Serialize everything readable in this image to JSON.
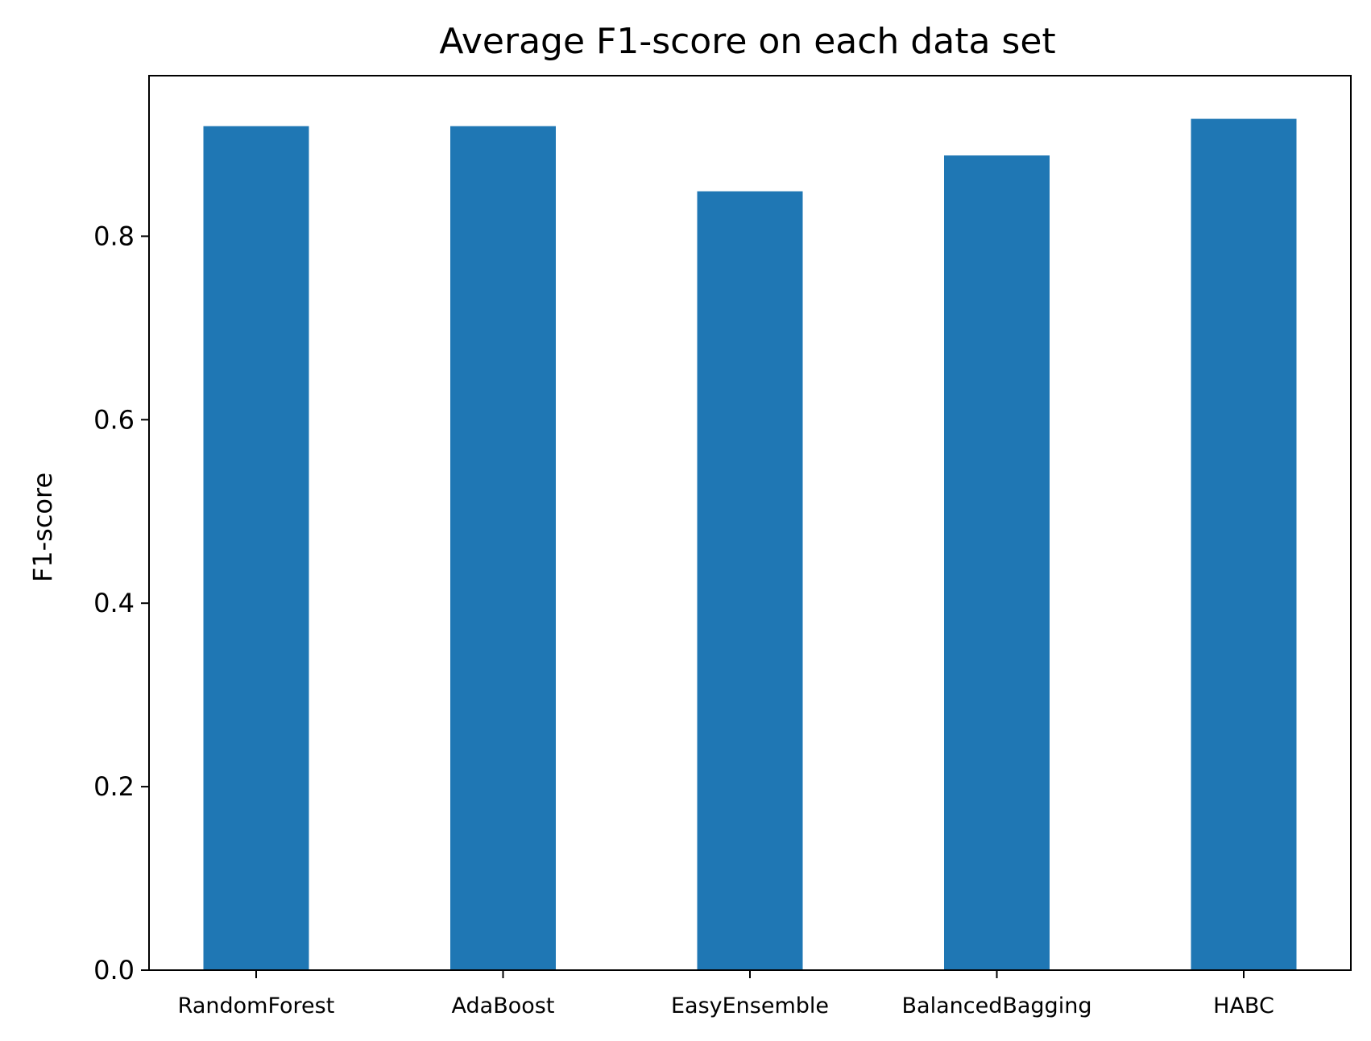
{
  "chart_data": {
    "type": "bar",
    "title": "Average F1-score on each data set",
    "xlabel": "",
    "ylabel": "F1-score",
    "categories": [
      "RandomForest",
      "AdaBoost",
      "EasyEnsemble",
      "BalancedBagging",
      "HABC"
    ],
    "values": [
      0.92,
      0.92,
      0.849,
      0.888,
      0.928
    ],
    "ylim": [
      0,
      0.975
    ],
    "yticks": [
      "0.0",
      "0.2",
      "0.4",
      "0.6",
      "0.8"
    ],
    "grid": false,
    "bar_color": "#1f77b4"
  }
}
